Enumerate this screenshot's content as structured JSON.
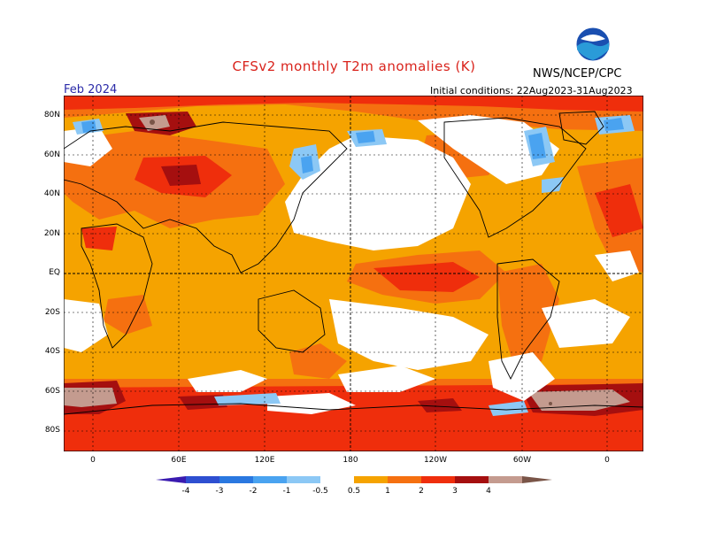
{
  "header": {
    "title": "CFSv2 monthly T2m anomalies (K)",
    "agency": "NWS/NCEP/CPC",
    "logo_text": "NOAA",
    "month": "Feb 2024",
    "initial_conditions": "Initial conditions: 22Aug2023-31Aug2023"
  },
  "map": {
    "lat_labels": [
      "80N",
      "60N",
      "40N",
      "20N",
      "EQ",
      "20S",
      "40S",
      "60S",
      "80S"
    ],
    "lon_labels": [
      "0",
      "60E",
      "120E",
      "180",
      "120W",
      "60W",
      "0"
    ]
  },
  "legend": {
    "ticks": [
      "-4",
      "-3",
      "-2",
      "-1",
      "-0.5",
      "0.5",
      "1",
      "2",
      "3",
      "4"
    ],
    "colors": [
      "#3a1bb0",
      "#2e4fd1",
      "#2a78e0",
      "#4aa3f0",
      "#8cc8f5",
      "#ffffff",
      "#f5a300",
      "#f57010",
      "#ef2e0c",
      "#a50f0f",
      "#c49b8f",
      "#7a5548"
    ]
  }
}
